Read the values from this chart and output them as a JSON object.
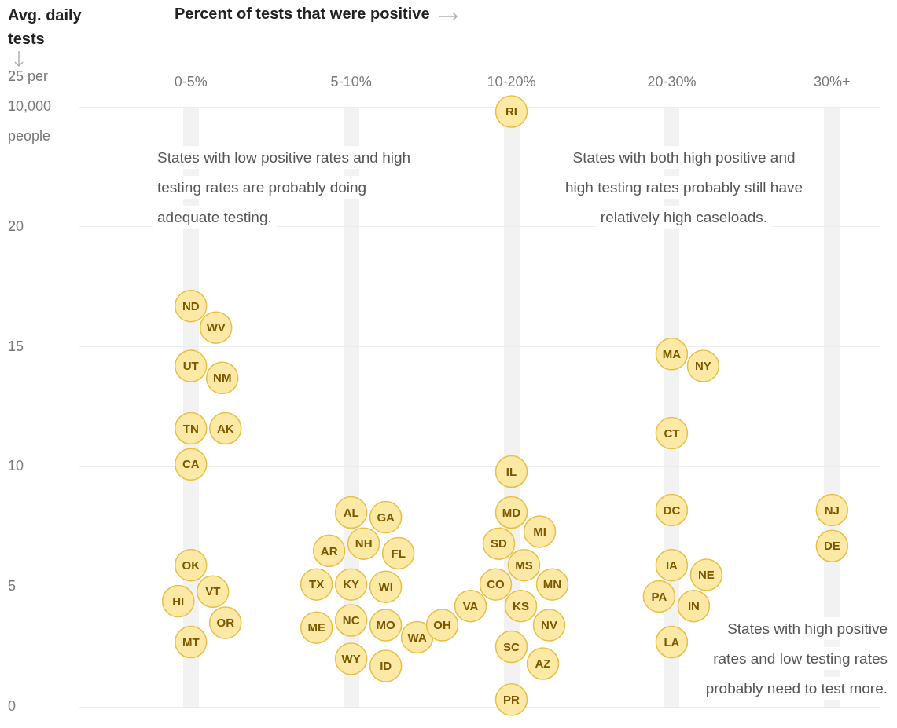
{
  "chart_data": {
    "type": "scatter",
    "xlabel": "Percent of tests that were positive",
    "ylabel": "Avg. daily tests",
    "categories": [
      "0-5%",
      "5-10%",
      "10-20%",
      "20-30%",
      "30%+"
    ],
    "ylim": [
      0,
      25
    ],
    "yticks": [
      0,
      5,
      10,
      15,
      20,
      {
        "value": 25,
        "label": "25 per 10,000 people"
      }
    ],
    "grid": true,
    "legend": false,
    "marker": "circle",
    "series": [
      {
        "color": "#fce9a6",
        "x": [
          "0-5%",
          "0-5%",
          "0-5%",
          "0-5%",
          "0-5%",
          "0-5%",
          "0-5%",
          "0-5%",
          "0-5%",
          "0-5%",
          "0-5%",
          "0-5%",
          "5-10%",
          "5-10%",
          "5-10%",
          "5-10%",
          "5-10%",
          "5-10%",
          "5-10%",
          "5-10%",
          "5-10%",
          "5-10%",
          "5-10%",
          "5-10%",
          "5-10%",
          "5-10%",
          "10-20%",
          "10-20%",
          "10-20%",
          "10-20%",
          "10-20%",
          "10-20%",
          "10-20%",
          "10-20%",
          "10-20%",
          "10-20%",
          "10-20%",
          "10-20%",
          "10-20%",
          "10-20%",
          "10-20%",
          "20-30%",
          "20-30%",
          "20-30%",
          "20-30%",
          "20-30%",
          "20-30%",
          "20-30%",
          "20-30%",
          "20-30%",
          "30%+",
          "30%+"
        ],
        "values": [
          16.7,
          15.8,
          14.2,
          13.7,
          11.6,
          11.6,
          10.1,
          5.9,
          4.8,
          4.4,
          3.5,
          2.7,
          8.1,
          7.9,
          6.8,
          6.5,
          6.4,
          5.1,
          5.0,
          5.1,
          3.6,
          3.4,
          3.3,
          2.9,
          2.0,
          1.7,
          24.8,
          9.8,
          8.1,
          7.3,
          6.8,
          5.9,
          5.1,
          5.1,
          4.2,
          4.2,
          3.4,
          3.4,
          2.5,
          1.8,
          0.3,
          14.7,
          14.2,
          11.4,
          8.2,
          5.9,
          5.5,
          4.6,
          4.2,
          2.7,
          8.2,
          6.7
        ],
        "value_labels": [
          "ND",
          "WV",
          "UT",
          "NM",
          "TN",
          "AK",
          "CA",
          "OK",
          "VT",
          "HI",
          "OR",
          "MT",
          "AL",
          "GA",
          "NH",
          "AR",
          "FL",
          "KY",
          "WI",
          "TX",
          "NC",
          "MO",
          "ME",
          "WA",
          "WY",
          "ID",
          "RI",
          "IL",
          "MD",
          "MI",
          "SD",
          "MS",
          "CO",
          "MN",
          "KS",
          "VA",
          "NV",
          "OH",
          "SC",
          "AZ",
          "PR",
          "MA",
          "NY",
          "CT",
          "DC",
          "IA",
          "NE",
          "PA",
          "IN",
          "LA",
          "NJ",
          "DE"
        ]
      }
    ],
    "annotations": [
      "States with low positive rates and high testing rates are probably doing adequate testing.",
      "States with both high positive and high testing rates probably still have relatively high caseloads.",
      "States with high positive rates and low testing rates probably need to test more."
    ]
  }
}
